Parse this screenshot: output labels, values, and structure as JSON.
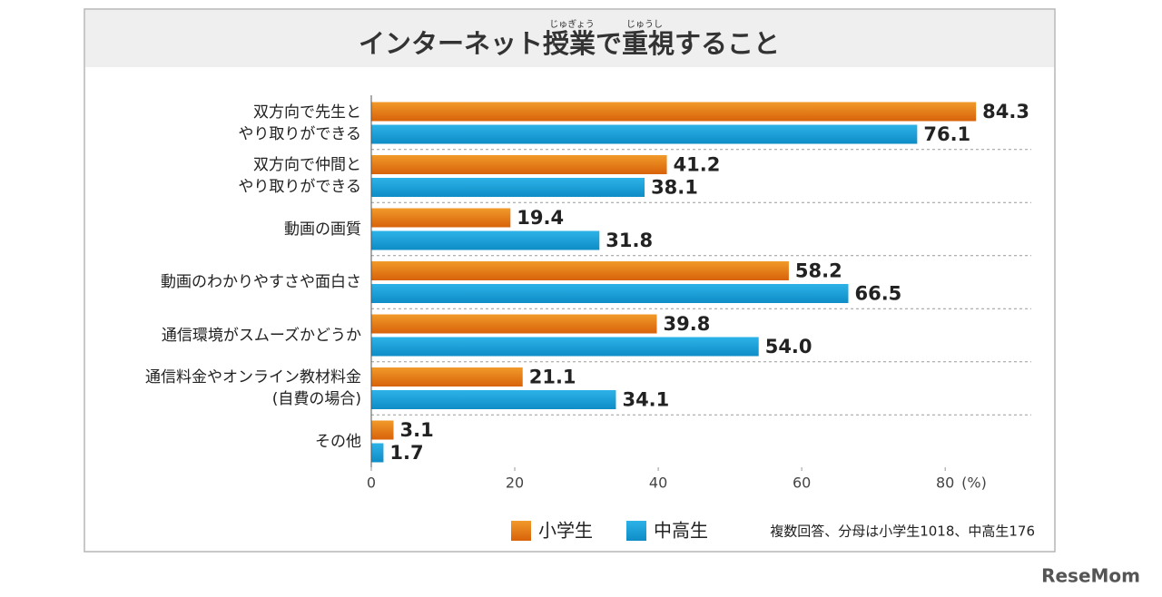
{
  "chart_data": {
    "type": "hbar",
    "title": "インターネット授業で重視すること",
    "title_ruby": [
      "じゅぎょう",
      "じゅうし"
    ],
    "categories": [
      "双方向で先生と\nやり取りができる",
      "双方向で仲間と\nやり取りができる",
      "動画の画質",
      "動画のわかりやすさや面白さ",
      "通信環境がスムーズかどうか",
      "通信料金やオンライン教材料金\n(自費の場合)",
      "その他"
    ],
    "series": [
      {
        "name": "小学生",
        "color": "#e8800f",
        "values": [
          84.3,
          41.2,
          19.4,
          58.2,
          39.8,
          21.1,
          3.1
        ],
        "value_labels": [
          "84.3",
          "41.2",
          "19.4",
          "58.2",
          "39.8",
          "21.1",
          "3.1"
        ]
      },
      {
        "name": "中高生",
        "color": "#139fd9",
        "values": [
          76.1,
          38.1,
          31.8,
          66.5,
          54.0,
          34.1,
          1.7
        ],
        "value_labels": [
          "76.1",
          "38.1",
          "31.8",
          "66.5",
          "54.0",
          "34.1",
          "1.7"
        ]
      }
    ],
    "xlim": [
      0,
      92
    ],
    "xticks": [
      0,
      20,
      40,
      60,
      80
    ],
    "x_unit": "(%)",
    "grid": false,
    "note": "複数回答、分母は小学生1018、中高生176",
    "watermark": "ReseMom"
  }
}
